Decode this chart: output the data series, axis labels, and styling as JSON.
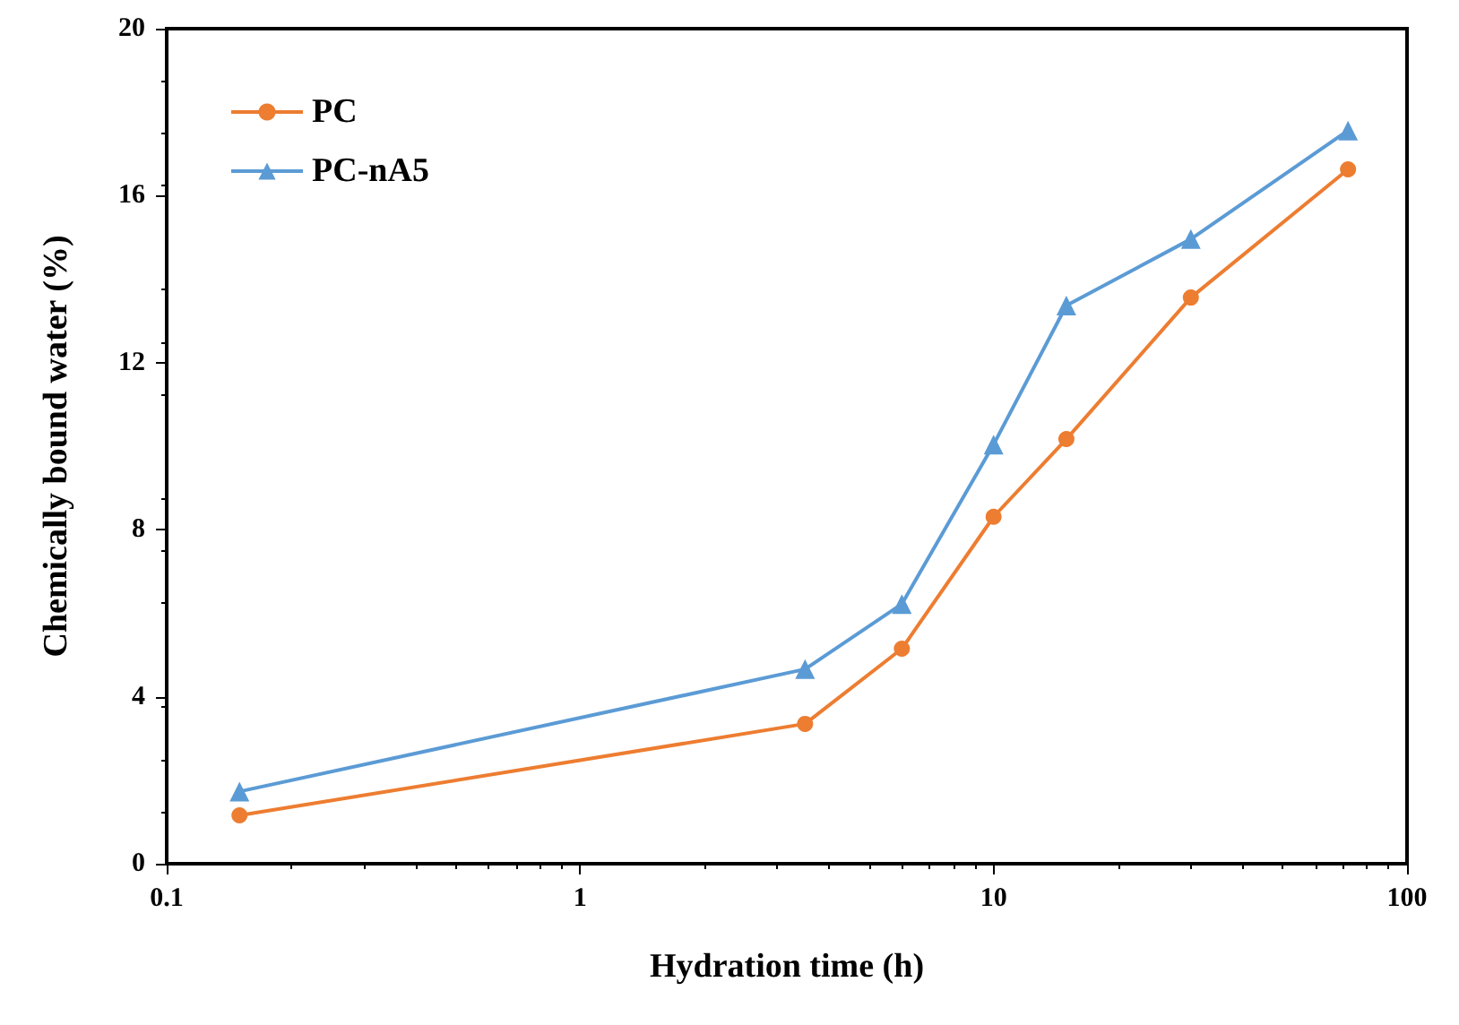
{
  "chart_data": {
    "type": "line",
    "xlabel": "Hydration time (h)",
    "ylabel": "Chemically bound water (%)",
    "x": [
      0.15,
      3.5,
      6,
      10,
      15,
      30,
      72
    ],
    "series": [
      {
        "name": "PC",
        "color": "#ed7d31",
        "marker": "circle",
        "values": [
          1.16,
          3.35,
          5.15,
          8.31,
          10.17,
          13.56,
          16.63
        ]
      },
      {
        "name": "PC-nA5",
        "color": "#5b9bd5",
        "marker": "triangle",
        "values": [
          1.73,
          4.66,
          6.22,
          10.04,
          13.37,
          14.96,
          17.56
        ]
      }
    ],
    "log": "x",
    "xlim": [
      0.1,
      100
    ],
    "xticks": [
      0.1,
      1,
      10,
      100
    ],
    "ylim": [
      0,
      20
    ],
    "yticks": [
      0,
      4,
      8,
      12,
      16,
      20
    ],
    "grid": false,
    "legend": "top left",
    "line_style": "solid"
  }
}
